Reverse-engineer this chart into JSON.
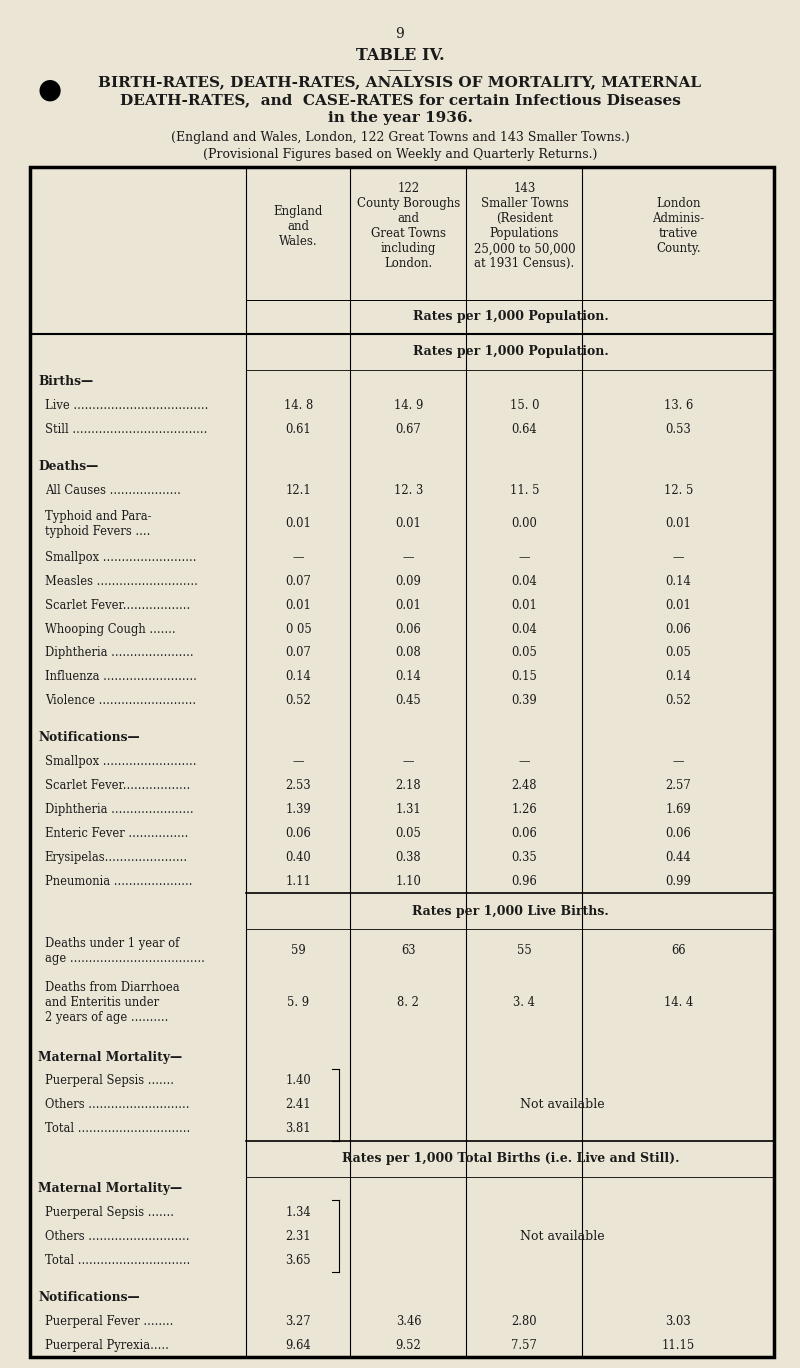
{
  "page_number": "9",
  "table_title": "TABLE IV.",
  "title_line1": "BIRTH-RATES, DEATH-RATES, ANALYSIS OF MORTALITY, MATERNAL",
  "title_line2": "DEATH-RATES,  and  CASE-RATES for certain Infectious Diseases",
  "title_line3": "in the year 1936.",
  "subtitle1": "(England and Wales, London, 122 Great Towns and 143 Smaller Towns.)",
  "subtitle2": "(Provisional Figures based on Weekly and Quarterly Returns.)",
  "bg_color": "#EAE5D5",
  "text_color": "#1a1a1a",
  "col_headers": [
    "England\nand\nWales.",
    "122\nCounty Boroughs\nand\nGreat Towns\nincluding\nLondon.",
    "143\nSmaller Towns\n(Resident\nPopulations\n25,000 to 50,000\nat 1931 Census).",
    "London\nAdminis-\ntrative\nCounty."
  ],
  "rows": [
    {
      "type": "section_label",
      "label": "Rates per 1,000 Population.",
      "vals": [
        "",
        "",
        "",
        ""
      ]
    },
    {
      "type": "bold_header",
      "label": "Births—",
      "vals": [
        "",
        "",
        "",
        ""
      ]
    },
    {
      "type": "data",
      "label": "Live ....................................",
      "vals": [
        "14. 8",
        "14. 9",
        "15. 0",
        "13. 6"
      ]
    },
    {
      "type": "data",
      "label": "Still ....................................",
      "vals": [
        "0.61",
        "0.67",
        "0.64",
        "0.53"
      ]
    },
    {
      "type": "spacer",
      "label": "",
      "vals": [
        "",
        "",
        "",
        ""
      ]
    },
    {
      "type": "bold_header",
      "label": "Deaths—",
      "vals": [
        "",
        "",
        "",
        ""
      ]
    },
    {
      "type": "data",
      "label": "All Causes ...................",
      "vals": [
        "12.1",
        "12. 3",
        "11. 5",
        "12. 5"
      ]
    },
    {
      "type": "data2",
      "label": "Typhoid and Para-\ntyphoid Fevers ....",
      "vals": [
        "0.01",
        "0.01",
        "0.00",
        "0.01"
      ]
    },
    {
      "type": "data",
      "label": "Smallpox .........................",
      "vals": [
        "—",
        "—",
        "—",
        "—"
      ]
    },
    {
      "type": "data",
      "label": "Measles ...........................",
      "vals": [
        "0.07",
        "0.09",
        "0.04",
        "0.14"
      ]
    },
    {
      "type": "data",
      "label": "Scarlet Fever..................",
      "vals": [
        "0.01",
        "0.01",
        "0.01",
        "0.01"
      ]
    },
    {
      "type": "data",
      "label": "Whooping Cough .......",
      "vals": [
        "0 05",
        "0.06",
        "0.04",
        "0.06"
      ]
    },
    {
      "type": "data",
      "label": "Diphtheria ......................",
      "vals": [
        "0.07",
        "0.08",
        "0.05",
        "0.05"
      ]
    },
    {
      "type": "data",
      "label": "Influenza .........................",
      "vals": [
        "0.14",
        "0.14",
        "0.15",
        "0.14"
      ]
    },
    {
      "type": "data",
      "label": "Violence ..........................",
      "vals": [
        "0.52",
        "0.45",
        "0.39",
        "0.52"
      ]
    },
    {
      "type": "spacer",
      "label": "",
      "vals": [
        "",
        "",
        "",
        ""
      ]
    },
    {
      "type": "bold_header",
      "label": "Notifications—",
      "vals": [
        "",
        "",
        "",
        ""
      ]
    },
    {
      "type": "data",
      "label": "Smallpox .........................",
      "vals": [
        "—",
        "—",
        "—",
        "—"
      ]
    },
    {
      "type": "data",
      "label": "Scarlet Fever..................",
      "vals": [
        "2.53",
        "2.18",
        "2.48",
        "2.57"
      ]
    },
    {
      "type": "data",
      "label": "Diphtheria ......................",
      "vals": [
        "1.39",
        "1.31",
        "1.26",
        "1.69"
      ]
    },
    {
      "type": "data",
      "label": "Enteric Fever ................",
      "vals": [
        "0.06",
        "0.05",
        "0.06",
        "0.06"
      ]
    },
    {
      "type": "data",
      "label": "Erysipelas......................",
      "vals": [
        "0.40",
        "0.38",
        "0.35",
        "0.44"
      ]
    },
    {
      "type": "data",
      "label": "Pneumonia .....................",
      "vals": [
        "1.11",
        "1.10",
        "0.96",
        "0.99"
      ]
    },
    {
      "type": "section_label",
      "label": "Rates per 1,000 Live Births.",
      "vals": [
        "",
        "",
        "",
        ""
      ]
    },
    {
      "type": "data2",
      "label": "Deaths under 1 year of\nage ....................................",
      "vals": [
        "59",
        "63",
        "55",
        "66"
      ]
    },
    {
      "type": "data3",
      "label": "Deaths from Diarrhoea\nand Enteritis under\n2 years of age ..........",
      "vals": [
        "5. 9",
        "8. 2",
        "3. 4",
        "14. 4"
      ]
    },
    {
      "type": "spacer",
      "label": "",
      "vals": [
        "",
        "",
        "",
        ""
      ]
    },
    {
      "type": "bold_header",
      "label": "Maternal Mortality—",
      "vals": [
        "",
        "",
        "",
        ""
      ]
    },
    {
      "type": "not_avail",
      "label": "Puerperal Sepsis .......",
      "vals": [
        "1.40",
        "",
        "",
        ""
      ]
    },
    {
      "type": "not_avail",
      "label": "Others ...........................",
      "vals": [
        "2.41",
        "",
        "",
        ""
      ]
    },
    {
      "type": "not_avail",
      "label": "Total ..............................",
      "vals": [
        "3.81",
        "",
        "",
        ""
      ]
    },
    {
      "type": "section_label",
      "label": "Rates per 1,000 Total Births (i.e. Live and Still).",
      "vals": [
        "",
        "",
        "",
        ""
      ]
    },
    {
      "type": "bold_header",
      "label": "Maternal Mortality—",
      "vals": [
        "",
        "",
        "",
        ""
      ]
    },
    {
      "type": "not_avail2",
      "label": "Puerperal Sepsis .......",
      "vals": [
        "1.34",
        "",
        "",
        ""
      ]
    },
    {
      "type": "not_avail2",
      "label": "Others ...........................",
      "vals": [
        "2.31",
        "",
        "",
        ""
      ]
    },
    {
      "type": "not_avail2",
      "label": "Total ..............................",
      "vals": [
        "3.65",
        "",
        "",
        ""
      ]
    },
    {
      "type": "spacer",
      "label": "",
      "vals": [
        "",
        "",
        "",
        ""
      ]
    },
    {
      "type": "bold_header",
      "label": "Notifications—",
      "vals": [
        "",
        "",
        "",
        ""
      ]
    },
    {
      "type": "data",
      "label": "Puerperal Fever ........",
      "vals": [
        "3.27",
        "3.46",
        "2.80",
        "3.03"
      ]
    },
    {
      "type": "data",
      "label": "Puerperal Pyrexia.....",
      "vals": [
        "9.64",
        "9.52",
        "7.57",
        "11.15"
      ]
    }
  ]
}
